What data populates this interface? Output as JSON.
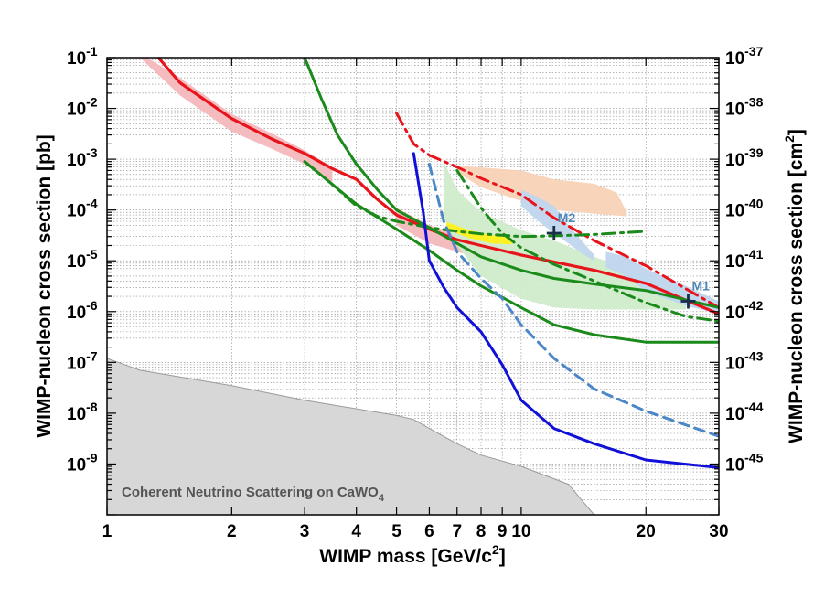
{
  "chart_data": {
    "type": "line",
    "xlabel_main": "WIMP mass [GeV/c",
    "xlabel_sup": "2",
    "xlabel_end": "]",
    "ylabel_left": "WIMP-nucleon cross section [pb]",
    "ylabel_right_main": "WIMP-nucleon cross section [cm",
    "ylabel_right_sup": "2",
    "ylabel_right_end": "]",
    "x_scale": "log",
    "y_scale": "log",
    "xlim": [
      1,
      30
    ],
    "ylim_pb": [
      1e-10,
      0.1
    ],
    "x_ticks": [
      {
        "value": 1,
        "label": "1"
      },
      {
        "value": 2,
        "label": "2"
      },
      {
        "value": 3,
        "label": "3"
      },
      {
        "value": 4,
        "label": "4"
      },
      {
        "value": 5,
        "label": "5"
      },
      {
        "value": 6,
        "label": "6"
      },
      {
        "value": 7,
        "label": "7"
      },
      {
        "value": 8,
        "label": "8"
      },
      {
        "value": 9,
        "label": "9"
      },
      {
        "value": 10,
        "label": "10"
      },
      {
        "value": 20,
        "label": "20"
      },
      {
        "value": 30,
        "label": "30"
      }
    ],
    "y_ticks_left": [
      {
        "exp": -1,
        "base": "10",
        "sup": "-1"
      },
      {
        "exp": -2,
        "base": "10",
        "sup": "-2"
      },
      {
        "exp": -3,
        "base": "10",
        "sup": "-3"
      },
      {
        "exp": -4,
        "base": "10",
        "sup": "-4"
      },
      {
        "exp": -5,
        "base": "10",
        "sup": "-5"
      },
      {
        "exp": -6,
        "base": "10",
        "sup": "-6"
      },
      {
        "exp": -7,
        "base": "10",
        "sup": "-7"
      },
      {
        "exp": -8,
        "base": "10",
        "sup": "-8"
      },
      {
        "exp": -9,
        "base": "10",
        "sup": "-9"
      }
    ],
    "y_ticks_right": [
      {
        "exp": -1,
        "base": "10",
        "sup": "-37"
      },
      {
        "exp": -2,
        "base": "10",
        "sup": "-38"
      },
      {
        "exp": -3,
        "base": "10",
        "sup": "-39"
      },
      {
        "exp": -4,
        "base": "10",
        "sup": "-40"
      },
      {
        "exp": -5,
        "base": "10",
        "sup": "-41"
      },
      {
        "exp": -6,
        "base": "10",
        "sup": "-42"
      },
      {
        "exp": -7,
        "base": "10",
        "sup": "-43"
      },
      {
        "exp": -8,
        "base": "10",
        "sup": "-44"
      },
      {
        "exp": -9,
        "base": "10",
        "sup": "-45"
      }
    ],
    "grid": true,
    "series": [
      {
        "name": "red-limit",
        "color": "#e8141c",
        "dash": "solid",
        "width": 3.2,
        "points": [
          [
            1.33,
            0.1
          ],
          [
            1.5,
            0.032
          ],
          [
            2,
            0.0063
          ],
          [
            2.5,
            0.0025
          ],
          [
            3,
            0.0013
          ],
          [
            3.5,
            0.00065
          ],
          [
            4,
            0.0004
          ],
          [
            4.5,
            0.00016
          ],
          [
            5,
            8e-05
          ],
          [
            6,
            4.2e-05
          ],
          [
            7,
            2.6e-05
          ],
          [
            8,
            2e-05
          ],
          [
            10,
            1.3e-05
          ],
          [
            15,
            6.5e-06
          ],
          [
            20,
            3.6e-06
          ],
          [
            30,
            9e-07
          ]
        ]
      },
      {
        "name": "red-dashdot",
        "color": "#e8141c",
        "dash": "dashdot",
        "width": 3.0,
        "points": [
          [
            5,
            0.008
          ],
          [
            5.5,
            0.002
          ],
          [
            6,
            0.0012
          ],
          [
            7,
            0.0007
          ],
          [
            8,
            0.00042
          ],
          [
            10,
            0.0002
          ],
          [
            12,
            7e-05
          ],
          [
            15,
            2.5e-05
          ],
          [
            20,
            8e-06
          ],
          [
            25,
            2.8e-06
          ],
          [
            30,
            1.2e-06
          ]
        ]
      },
      {
        "name": "green-solid-1",
        "color": "#1a8a1a",
        "dash": "solid",
        "width": 3.0,
        "points": [
          [
            3,
            0.1
          ],
          [
            3.3,
            0.015
          ],
          [
            3.6,
            0.003
          ],
          [
            4,
            0.0008
          ],
          [
            4.5,
            0.00025
          ],
          [
            5,
            0.0001
          ],
          [
            6,
            4.5e-05
          ],
          [
            7,
            2.2e-05
          ],
          [
            8,
            1.2e-05
          ],
          [
            10,
            6.5e-06
          ],
          [
            12,
            4.5e-06
          ],
          [
            15,
            3.5e-06
          ],
          [
            20,
            2.6e-06
          ],
          [
            30,
            1.2e-06
          ]
        ]
      },
      {
        "name": "green-solid-2",
        "color": "#1a8a1a",
        "dash": "solid",
        "width": 3.0,
        "points": [
          [
            3,
            0.0009
          ],
          [
            3.5,
            0.00032
          ],
          [
            4,
            0.00013
          ],
          [
            5,
            4.2e-05
          ],
          [
            6,
            1.6e-05
          ],
          [
            7,
            6.5e-06
          ],
          [
            8,
            3.2e-06
          ],
          [
            10,
            1.2e-06
          ],
          [
            12,
            5.5e-07
          ],
          [
            15,
            3.5e-07
          ],
          [
            20,
            2.5e-07
          ],
          [
            30,
            2.5e-07
          ]
        ]
      },
      {
        "name": "green-dashdot-1",
        "color": "#1a8a1a",
        "dash": "dashdot",
        "width": 3.0,
        "points": [
          [
            3,
            0.0009
          ],
          [
            3.5,
            0.00032
          ],
          [
            4,
            0.00012
          ],
          [
            4.5,
            7.5e-05
          ],
          [
            5,
            6e-05
          ],
          [
            6,
            4.5e-05
          ],
          [
            7,
            3.8e-05
          ],
          [
            8,
            3.4e-05
          ],
          [
            10,
            3e-05
          ],
          [
            12,
            3.1e-05
          ],
          [
            15,
            3.3e-05
          ],
          [
            20,
            3.8e-05
          ]
        ]
      },
      {
        "name": "green-dashdot-2",
        "color": "#1a8a1a",
        "dash": "dashdot",
        "width": 3.0,
        "points": [
          [
            7,
            0.0006
          ],
          [
            7.5,
            0.00025
          ],
          [
            8,
            0.00011
          ],
          [
            8.5,
            6e-05
          ],
          [
            9,
            3.5e-05
          ],
          [
            10,
            1.8e-05
          ],
          [
            12,
            8.5e-06
          ],
          [
            15,
            4e-06
          ],
          [
            20,
            1.5e-06
          ],
          [
            25,
            8e-07
          ],
          [
            30,
            6.5e-07
          ]
        ]
      },
      {
        "name": "blue-solid",
        "color": "#1010d8",
        "dash": "solid",
        "width": 3.0,
        "points": [
          [
            5.5,
            0.0013
          ],
          [
            5.8,
            9e-05
          ],
          [
            6,
            1e-05
          ],
          [
            6.5,
            3e-06
          ],
          [
            7,
            1.2e-06
          ],
          [
            8,
            4e-07
          ],
          [
            9,
            9e-08
          ],
          [
            10,
            1.8e-08
          ],
          [
            12,
            5e-09
          ],
          [
            15,
            2.5e-09
          ],
          [
            20,
            1.2e-09
          ],
          [
            30,
            8.5e-10
          ]
        ]
      },
      {
        "name": "blue-dashed",
        "color": "#4a86c8",
        "dash": "dashed",
        "width": 3.0,
        "points": [
          [
            6,
            0.0008
          ],
          [
            6.5,
            6e-05
          ],
          [
            7,
            1.5e-05
          ],
          [
            8,
            4.5e-06
          ],
          [
            9,
            1.8e-06
          ],
          [
            10,
            5.5e-07
          ],
          [
            12,
            1.2e-07
          ],
          [
            15,
            3e-08
          ],
          [
            20,
            1.1e-08
          ],
          [
            30,
            3.5e-09
          ]
        ]
      }
    ],
    "regions": [
      {
        "name": "red-band",
        "color": "#f4b8bc",
        "upper": [
          [
            1.25,
            0.1
          ],
          [
            1.5,
            0.04
          ],
          [
            2,
            0.0078
          ],
          [
            2.5,
            0.0032
          ],
          [
            3,
            0.0015
          ],
          [
            3.5,
            0.0007
          ]
        ],
        "lower": [
          [
            1.2,
            0.1
          ],
          [
            1.5,
            0.018
          ],
          [
            2,
            0.0035
          ],
          [
            2.5,
            0.0016
          ],
          [
            3,
            0.0008
          ],
          [
            3.5,
            0.00035
          ]
        ]
      },
      {
        "name": "red-band-2",
        "color": "#f4b8bc",
        "upper": [
          [
            5,
            0.00011
          ],
          [
            6,
            5e-05
          ],
          [
            8,
            2.4e-05
          ],
          [
            10,
            1.6e-05
          ]
        ],
        "lower": [
          [
            5,
            5e-05
          ],
          [
            6,
            2.2e-05
          ],
          [
            8,
            1.1e-05
          ],
          [
            10,
            8e-06
          ]
        ]
      },
      {
        "name": "green-contour",
        "color": "#cfeccb",
        "upper": [
          [
            6.5,
            0.0009
          ],
          [
            7,
            0.00025
          ],
          [
            8,
            9e-05
          ],
          [
            10,
            4e-05
          ],
          [
            12,
            2.5e-05
          ],
          [
            15,
            1.2e-05
          ],
          [
            20,
            5e-06
          ],
          [
            25,
            2.4e-06
          ]
        ],
        "lower": [
          [
            6.5,
            7e-05
          ],
          [
            7,
            2e-05
          ],
          [
            8,
            5e-06
          ],
          [
            10,
            1.8e-06
          ],
          [
            12,
            1.2e-06
          ],
          [
            15,
            1.1e-06
          ],
          [
            20,
            1.1e-06
          ],
          [
            25,
            1.1e-06
          ]
        ]
      },
      {
        "name": "orange-contour",
        "color": "#f8d2b6",
        "upper": [
          [
            7,
            0.00075
          ],
          [
            10,
            0.0006
          ],
          [
            12,
            0.0004
          ],
          [
            15,
            0.00033
          ],
          [
            17,
            0.00022
          ],
          [
            18,
            9e-05
          ]
        ],
        "lower": [
          [
            7,
            0.00055
          ],
          [
            8,
            0.00028
          ],
          [
            10,
            0.00015
          ],
          [
            12,
            0.0001
          ],
          [
            15,
            8.5e-05
          ],
          [
            18,
            7.5e-05
          ]
        ]
      },
      {
        "name": "blue-contour-m2",
        "color": "#c0d6ee",
        "upper": [
          [
            10,
            0.00025
          ],
          [
            11,
            0.00018
          ],
          [
            12,
            0.00012
          ],
          [
            13,
            5e-05
          ],
          [
            14,
            2.5e-05
          ],
          [
            15,
            1.3e-05
          ]
        ],
        "lower": [
          [
            10,
            0.00012
          ],
          [
            11,
            6e-05
          ],
          [
            12,
            3.5e-05
          ],
          [
            13,
            2.2e-05
          ],
          [
            14,
            1.4e-05
          ],
          [
            15,
            1e-05
          ]
        ]
      },
      {
        "name": "blue-contour-m1",
        "color": "#c0d6ee",
        "upper": [
          [
            16,
            1.5e-05
          ],
          [
            18,
            1.2e-05
          ],
          [
            20,
            7e-06
          ],
          [
            25,
            3.2e-06
          ],
          [
            30,
            1.6e-06
          ]
        ],
        "lower": [
          [
            16,
            7.5e-06
          ],
          [
            18,
            4.8e-06
          ],
          [
            20,
            2.5e-06
          ],
          [
            25,
            1.3e-06
          ],
          [
            30,
            9e-07
          ]
        ]
      },
      {
        "name": "yellow-region",
        "color": "#fff01a",
        "upper": [
          [
            6.6,
            5.8e-05
          ],
          [
            7.5,
            4e-05
          ],
          [
            8.5,
            3.2e-05
          ],
          [
            9.5,
            2.8e-05
          ]
        ],
        "lower": [
          [
            6.6,
            4.2e-05
          ],
          [
            7.5,
            2.8e-05
          ],
          [
            8.5,
            2.2e-05
          ],
          [
            9.5,
            2.1e-05
          ]
        ]
      }
    ],
    "neutrino_floor": {
      "color": "#d7d7d7",
      "points": [
        [
          1,
          1.2e-07
        ],
        [
          1.2,
          7e-08
        ],
        [
          2,
          3.5e-08
        ],
        [
          3,
          1.8e-08
        ],
        [
          5,
          9e-09
        ],
        [
          5.5,
          7.5e-09
        ],
        [
          6,
          5e-09
        ],
        [
          7,
          2.5e-09
        ],
        [
          8,
          1.5e-09
        ],
        [
          10,
          9e-10
        ],
        [
          13,
          4e-10
        ],
        [
          15,
          1e-10
        ]
      ],
      "label_main": "Coherent Neutrino Scattering on CaWO",
      "label_sub": "4"
    },
    "markers": [
      {
        "label": "M2",
        "x": 12.0,
        "y": 3.5e-05
      },
      {
        "label": "M1",
        "x": 25.3,
        "y": 1.6e-06
      }
    ]
  }
}
